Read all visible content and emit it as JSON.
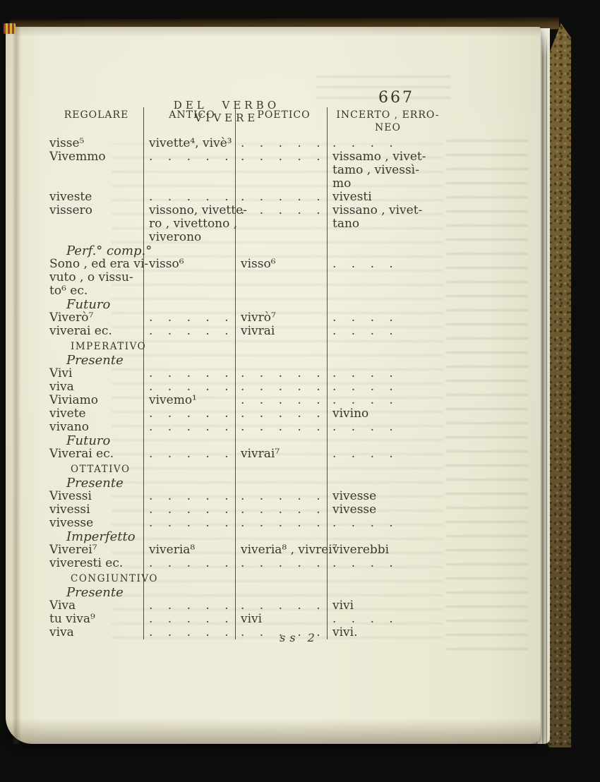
{
  "colors": {
    "background": "#0d0d0c",
    "paper": "#eae7d2",
    "ink": "#3a352b",
    "cover_marble": "#6d5a31"
  },
  "header": {
    "title": "DEL VERBO VIVERE",
    "page_number": "667"
  },
  "table": {
    "columns": [
      "REGOLARE",
      "ANTICO",
      "POETICO",
      "INCERTO , ERRO-\nNEO"
    ],
    "rows": [
      {
        "kind": "data",
        "cells": [
          "visse⁵",
          "vivette⁴, vivè³",
          ". . . . .",
          ". . . ."
        ]
      },
      {
        "kind": "data",
        "cells": [
          "Vivemmo",
          ". . . . .",
          ". . . . .",
          "vissamo , vivet-\ntamo , vivessì-\nmo"
        ]
      },
      {
        "kind": "data",
        "cells": [
          "viveste",
          ". . . . .",
          ". . . . .",
          "vivesti"
        ]
      },
      {
        "kind": "data",
        "cells": [
          "vissero",
          "vissono, vivette-\nro , vivettono ,\nviverono",
          ". . . . .",
          "vissano , vivet-\ntano"
        ]
      },
      {
        "kind": "section",
        "text": "Perf.° comp.°",
        "style": "italic"
      },
      {
        "kind": "data",
        "cells": [
          "Sono , ed era vi-\nvuto , o vissu-\nto⁶ ec.",
          "visso⁶",
          "visso⁶",
          ". . . ."
        ]
      },
      {
        "kind": "section",
        "text": "Futuro",
        "style": "italic"
      },
      {
        "kind": "data",
        "cells": [
          "Viverò⁷",
          ". . . . .",
          "vivrò⁷",
          ". . . ."
        ]
      },
      {
        "kind": "data",
        "cells": [
          "viverai ec.",
          ". . . . .",
          "vivrai",
          ". . . ."
        ]
      },
      {
        "kind": "section",
        "text": "IMPERATIVO",
        "style": "caps"
      },
      {
        "kind": "section",
        "text": "Presente",
        "style": "italic"
      },
      {
        "kind": "data",
        "cells": [
          "Vivi",
          ". . . . .",
          ". . . . .",
          ". . . ."
        ]
      },
      {
        "kind": "data",
        "cells": [
          "viva",
          ". . . . .",
          ". . . . .",
          ". . . ."
        ]
      },
      {
        "kind": "data",
        "cells": [
          "Viviamo",
          "vivemo¹",
          ". . . . .",
          ". . . ."
        ]
      },
      {
        "kind": "data",
        "cells": [
          "vivete",
          ". . . . .",
          ". . . . .",
          "vivino"
        ]
      },
      {
        "kind": "data",
        "cells": [
          "vivano",
          ". . . . .",
          ". . . . .",
          ". . . ."
        ]
      },
      {
        "kind": "section",
        "text": "Futuro",
        "style": "italic"
      },
      {
        "kind": "data",
        "cells": [
          "Viverai ec.",
          ". . . . .",
          "vivrai⁷",
          ". . . ."
        ]
      },
      {
        "kind": "section",
        "text": "OTTATIVO",
        "style": "caps"
      },
      {
        "kind": "section",
        "text": "Presente",
        "style": "italic"
      },
      {
        "kind": "data",
        "cells": [
          "Vivessi",
          ". . . . .",
          ". . . . .",
          "vivesse"
        ]
      },
      {
        "kind": "data",
        "cells": [
          "vivessi",
          ". . . . .",
          ". . . . .",
          "vivesse"
        ]
      },
      {
        "kind": "data",
        "cells": [
          "vivesse",
          ". . . . .",
          ". . . . .",
          ". . . ."
        ]
      },
      {
        "kind": "section",
        "text": "Imperfetto",
        "style": "italic"
      },
      {
        "kind": "data",
        "cells": [
          "Viverei⁷",
          "viveria⁸",
          "viveria⁸ , vivrei⁷",
          "viverebbi"
        ]
      },
      {
        "kind": "data",
        "cells": [
          "viveresti ec.",
          ". . . . .",
          ". . . . .",
          ". . . ."
        ]
      },
      {
        "kind": "section",
        "text": "CONGIUNTIVO",
        "style": "caps"
      },
      {
        "kind": "section",
        "text": "Presente",
        "style": "italic"
      },
      {
        "kind": "data",
        "cells": [
          "Viva",
          ". . . . .",
          ". . . . .",
          "vivi"
        ]
      },
      {
        "kind": "data",
        "cells": [
          "tu viva⁹",
          ". . . . .",
          "vivi",
          ". . . ."
        ]
      },
      {
        "kind": "data",
        "cells": [
          "viva",
          ". . . . .",
          ". . . . .",
          "vivi."
        ]
      }
    ]
  },
  "footer": {
    "signature": "ss 2"
  }
}
